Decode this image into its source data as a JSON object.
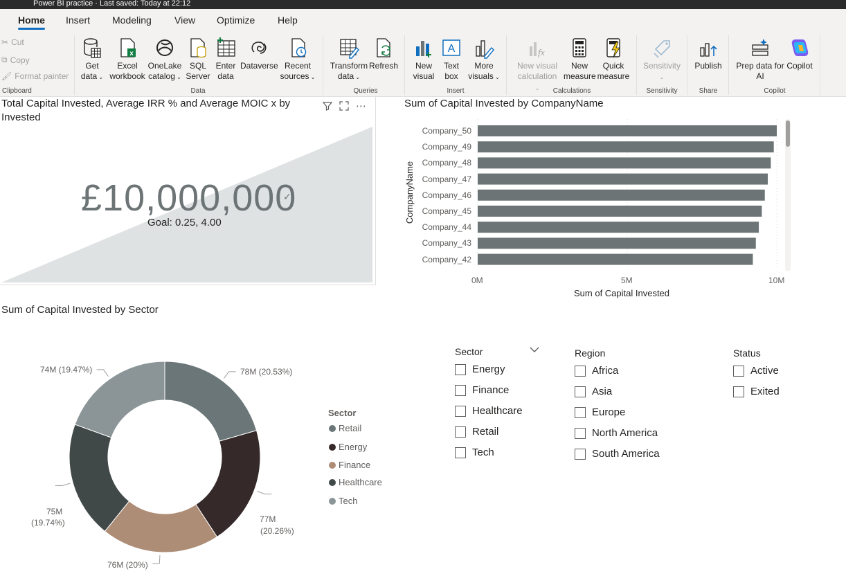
{
  "titlebar": {
    "text": "Power BI practice  ·  Last saved: Today at 22:12"
  },
  "tabs": [
    {
      "label": "Home",
      "active": true
    },
    {
      "label": "Insert"
    },
    {
      "label": "Modeling"
    },
    {
      "label": "View"
    },
    {
      "label": "Optimize"
    },
    {
      "label": "Help"
    }
  ],
  "ribbon": {
    "clipboard": {
      "cut": "Cut",
      "copy": "Copy",
      "format_painter": "Format painter",
      "group": "Clipboard"
    },
    "data": {
      "group": "Data",
      "buttons": [
        {
          "l1": "Get",
          "l2": "data",
          "icon": "database-icon"
        },
        {
          "l1": "Excel",
          "l2": "workbook",
          "icon": "excel-icon"
        },
        {
          "l1": "OneLake",
          "l2": "catalog",
          "icon": "onelake-icon"
        },
        {
          "l1": "SQL",
          "l2": "Server",
          "icon": "sql-server-icon"
        },
        {
          "l1": "Enter",
          "l2": "data",
          "icon": "table-icon"
        },
        {
          "l1": "Dataverse",
          "l2": "",
          "icon": "dataverse-icon"
        },
        {
          "l1": "Recent",
          "l2": "sources",
          "icon": "recent-sources-icon"
        }
      ]
    },
    "queries": {
      "group": "Queries",
      "buttons": [
        {
          "l1": "Transform",
          "l2": "data",
          "icon": "transform-icon"
        },
        {
          "l1": "Refresh",
          "l2": "",
          "icon": "refresh-icon"
        }
      ]
    },
    "insert": {
      "group": "Insert",
      "buttons": [
        {
          "l1": "New",
          "l2": "visual",
          "icon": "new-visual-icon"
        },
        {
          "l1": "Text",
          "l2": "box",
          "icon": "text-box-icon"
        },
        {
          "l1": "More",
          "l2": "visuals",
          "icon": "more-visuals-icon"
        }
      ]
    },
    "calculations": {
      "group": "Calculations",
      "buttons": [
        {
          "l1": "New visual",
          "l2": "calculation",
          "icon": "fx-icon"
        },
        {
          "l1": "New",
          "l2": "measure",
          "icon": "calculator-icon"
        },
        {
          "l1": "Quick",
          "l2": "measure",
          "icon": "quick-measure-icon"
        }
      ]
    },
    "sensitivity": {
      "group": "Sensitivity",
      "label": "Sensitivity"
    },
    "share": {
      "group": "Share",
      "label": "Publish"
    },
    "copilot": {
      "group": "Copilot",
      "buttons": [
        {
          "l1": "Prep data for",
          "l2": "AI",
          "icon": "prep-data-icon"
        },
        {
          "l1": "Copilot",
          "l2": "",
          "icon": "copilot-icon"
        }
      ]
    }
  },
  "gauge": {
    "title_line1": "Total Capital Invested, Average IRR % and Average MOIC x by",
    "title_line2": "Invested",
    "value": "£10,000,000",
    "goal": "Goal: 0.25, 4.00"
  },
  "bar_chart": {
    "title": "Sum of Capital Invested by CompanyName",
    "ylabel": "CompanyName",
    "xlabel": "Sum of Capital Invested",
    "ticks": [
      "0M",
      "5M",
      "10M"
    ]
  },
  "donut": {
    "title": "Sum of Capital Invested by Sector",
    "legend_title": "Sector",
    "labels": [
      {
        "text1": "78M (20.53%)",
        "text2": ""
      },
      {
        "text1": "77M",
        "text2": "(20.26%)"
      },
      {
        "text1": "76M (20%)",
        "text2": ""
      },
      {
        "text1": "75M",
        "text2": "(19.74%)"
      },
      {
        "text1": "74M (19.47%)",
        "text2": ""
      }
    ]
  },
  "slicers": {
    "sector": {
      "title": "Sector",
      "items": [
        "Energy",
        "Finance",
        "Healthcare",
        "Retail",
        "Tech"
      ]
    },
    "region": {
      "title": "Region",
      "items": [
        "Africa",
        "Asia",
        "Europe",
        "North America",
        "South America"
      ]
    },
    "status": {
      "title": "Status",
      "items": [
        "Active",
        "Exited"
      ]
    }
  },
  "colors": {
    "bar": "#6d7475",
    "retail": "#6b7678",
    "energy": "#352a29",
    "finance": "#ad8d76",
    "healthcare": "#414848",
    "tech": "#8b9598"
  },
  "chart_data": [
    {
      "type": "bar",
      "title": "Sum of Capital Invested by CompanyName",
      "categories": [
        "Company_50",
        "Company_49",
        "Company_48",
        "Company_47",
        "Company_46",
        "Company_45",
        "Company_44",
        "Company_43",
        "Company_42"
      ],
      "values": [
        10.0,
        9.9,
        9.8,
        9.7,
        9.6,
        9.5,
        9.4,
        9.3,
        9.2
      ],
      "xlabel": "Sum of Capital Invested",
      "ylabel": "CompanyName",
      "xlim": [
        0,
        10
      ],
      "unit": "M"
    },
    {
      "type": "pie",
      "title": "Sum of Capital Invested by Sector",
      "categories": [
        "Retail",
        "Energy",
        "Finance",
        "Healthcare",
        "Tech"
      ],
      "values": [
        78,
        77,
        76,
        75,
        74
      ],
      "percents": [
        20.53,
        20.26,
        20,
        19.74,
        19.47
      ],
      "legend": "right"
    }
  ]
}
